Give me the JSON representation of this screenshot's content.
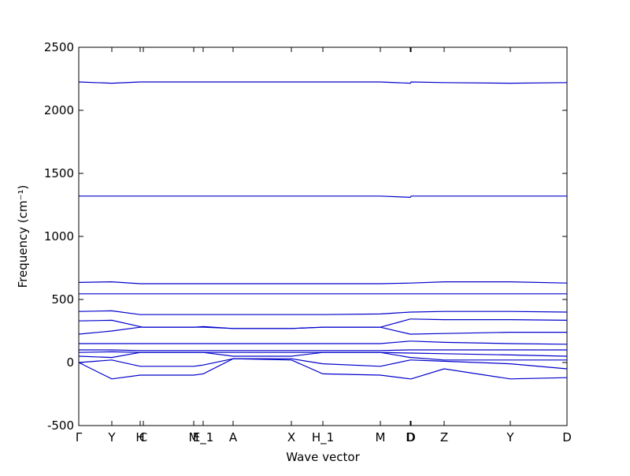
{
  "chart_data": {
    "type": "line",
    "xlabel": "Wave vector",
    "ylabel": "Frequency (cm⁻¹)",
    "x": [
      0,
      0.42,
      0.78,
      0.82,
      1.46,
      1.58,
      1.96,
      2.7,
      3.1,
      3.83,
      4.21,
      4.22,
      4.64,
      5.48,
      6.2
    ],
    "xlim": [
      0,
      6.2
    ],
    "xticks": [
      {
        "value": 0,
        "label": "Γ"
      },
      {
        "value": 0.42,
        "label": "Y"
      },
      {
        "value": 0.78,
        "label": "H"
      },
      {
        "value": 0.82,
        "label": "C"
      },
      {
        "value": 1.46,
        "label": "M"
      },
      {
        "value": 1.58,
        "label": "E_1"
      },
      {
        "value": 1.96,
        "label": "A"
      },
      {
        "value": 2.7,
        "label": "X"
      },
      {
        "value": 3.1,
        "label": "H_1"
      },
      {
        "value": 3.83,
        "label": "M"
      },
      {
        "value": 4.21,
        "label": "D"
      },
      {
        "value": 4.22,
        "label": "D"
      },
      {
        "value": 4.64,
        "label": "Z"
      },
      {
        "value": 5.48,
        "label": "Y"
      },
      {
        "value": 6.2,
        "label": "D"
      }
    ],
    "ylim": [
      -500,
      2500
    ],
    "yticks": [
      -500,
      0,
      500,
      1000,
      1500,
      2000,
      2500
    ],
    "color": "#0000cc",
    "series": [
      {
        "values": [
          2225,
          2215,
          2225,
          2225,
          2225,
          2225,
          2225,
          2225,
          2225,
          2225,
          2215,
          2225,
          2220,
          2215,
          2220
        ]
      },
      {
        "values": [
          1320,
          1320,
          1320,
          1320,
          1320,
          1320,
          1320,
          1320,
          1320,
          1320,
          1310,
          1320,
          1320,
          1320,
          1320
        ]
      },
      {
        "values": [
          635,
          640,
          625,
          625,
          625,
          625,
          625,
          625,
          625,
          625,
          630,
          630,
          640,
          640,
          630
        ]
      },
      {
        "values": [
          545,
          545,
          545,
          545,
          545,
          545,
          545,
          545,
          545,
          545,
          545,
          545,
          545,
          545,
          545
        ]
      },
      {
        "values": [
          405,
          410,
          380,
          380,
          380,
          380,
          380,
          380,
          380,
          385,
          400,
          400,
          405,
          405,
          400
        ]
      },
      {
        "values": [
          330,
          335,
          285,
          280,
          280,
          285,
          270,
          270,
          280,
          280,
          345,
          345,
          340,
          340,
          335
        ]
      },
      {
        "values": [
          225,
          250,
          280,
          280,
          280,
          280,
          270,
          270,
          280,
          280,
          225,
          225,
          230,
          240,
          240
        ]
      },
      {
        "values": [
          150,
          150,
          150,
          150,
          150,
          150,
          150,
          150,
          150,
          150,
          170,
          170,
          160,
          150,
          145
        ]
      },
      {
        "values": [
          100,
          100,
          95,
          95,
          95,
          95,
          95,
          95,
          95,
          95,
          100,
          100,
          100,
          100,
          100
        ]
      },
      {
        "values": [
          80,
          85,
          80,
          80,
          80,
          80,
          80,
          80,
          80,
          80,
          75,
          75,
          70,
          60,
          50
        ]
      },
      {
        "values": [
          50,
          40,
          80,
          80,
          80,
          80,
          50,
          50,
          80,
          80,
          40,
          40,
          20,
          20,
          20
        ]
      },
      {
        "values": [
          0,
          -130,
          -100,
          -100,
          -100,
          -90,
          30,
          20,
          -90,
          -100,
          -130,
          -130,
          -50,
          -130,
          -120
        ]
      },
      {
        "values": [
          0,
          20,
          -30,
          -30,
          -30,
          -20,
          30,
          30,
          -10,
          -30,
          20,
          20,
          10,
          -10,
          -50
        ]
      }
    ]
  }
}
